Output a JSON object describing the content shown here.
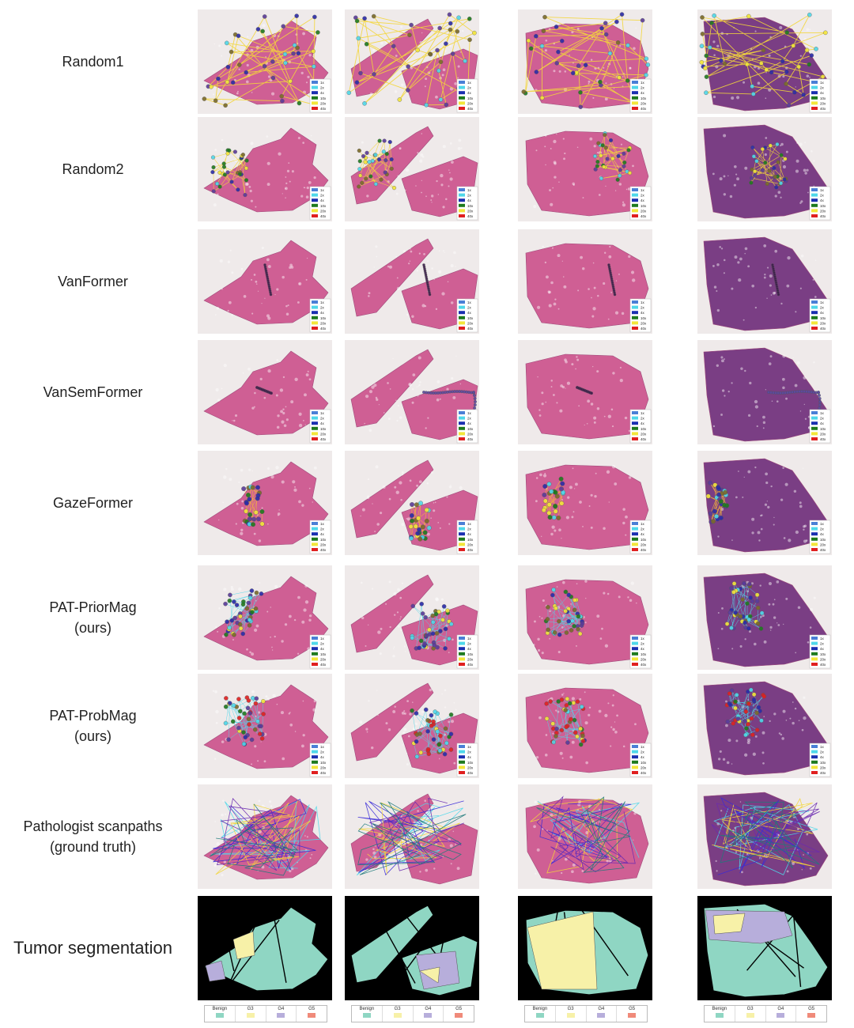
{
  "rows": [
    {
      "lines": [
        "Random1"
      ],
      "type": "random1"
    },
    {
      "lines": [
        "Random2"
      ],
      "type": "random2"
    },
    {
      "lines": [
        "VanFormer"
      ],
      "type": "vanformer"
    },
    {
      "lines": [
        "VanSemFormer"
      ],
      "type": "vansem"
    },
    {
      "lines": [
        "GazeFormer"
      ],
      "type": "gaze"
    },
    {
      "lines": [
        "PAT-PriorMag",
        "(ours)"
      ],
      "type": "patprior"
    },
    {
      "lines": [
        "PAT-ProbMag",
        "(ours)"
      ],
      "type": "patprob"
    },
    {
      "lines": [
        "Pathologist scanpaths",
        "(ground truth)"
      ],
      "type": "truth"
    },
    {
      "lines": [
        "Tumor segmentation"
      ],
      "type": "seg"
    }
  ],
  "magnification_legend": [
    {
      "label": "1x",
      "color": "#4a7fd6"
    },
    {
      "label": "2x",
      "color": "#4fd8ea"
    },
    {
      "label": "4x",
      "color": "#1a2fb0"
    },
    {
      "label": "10x",
      "color": "#1e7a1e"
    },
    {
      "label": "20x",
      "color": "#f3e63a"
    },
    {
      "label": "40x",
      "color": "#e02020"
    }
  ],
  "segmentation_legend": [
    {
      "label": "Benign",
      "color": "#8fd6c3"
    },
    {
      "label": "G3",
      "color": "#f7f1a8"
    },
    {
      "label": "G4",
      "color": "#b7aedb"
    },
    {
      "label": "G5",
      "color": "#f08a7a"
    }
  ],
  "colors": {
    "tissue_light": "#cf5f94",
    "tissue_dark": "#7a3e84",
    "background": "#efeaea",
    "segmentation_bg": "#000000"
  }
}
